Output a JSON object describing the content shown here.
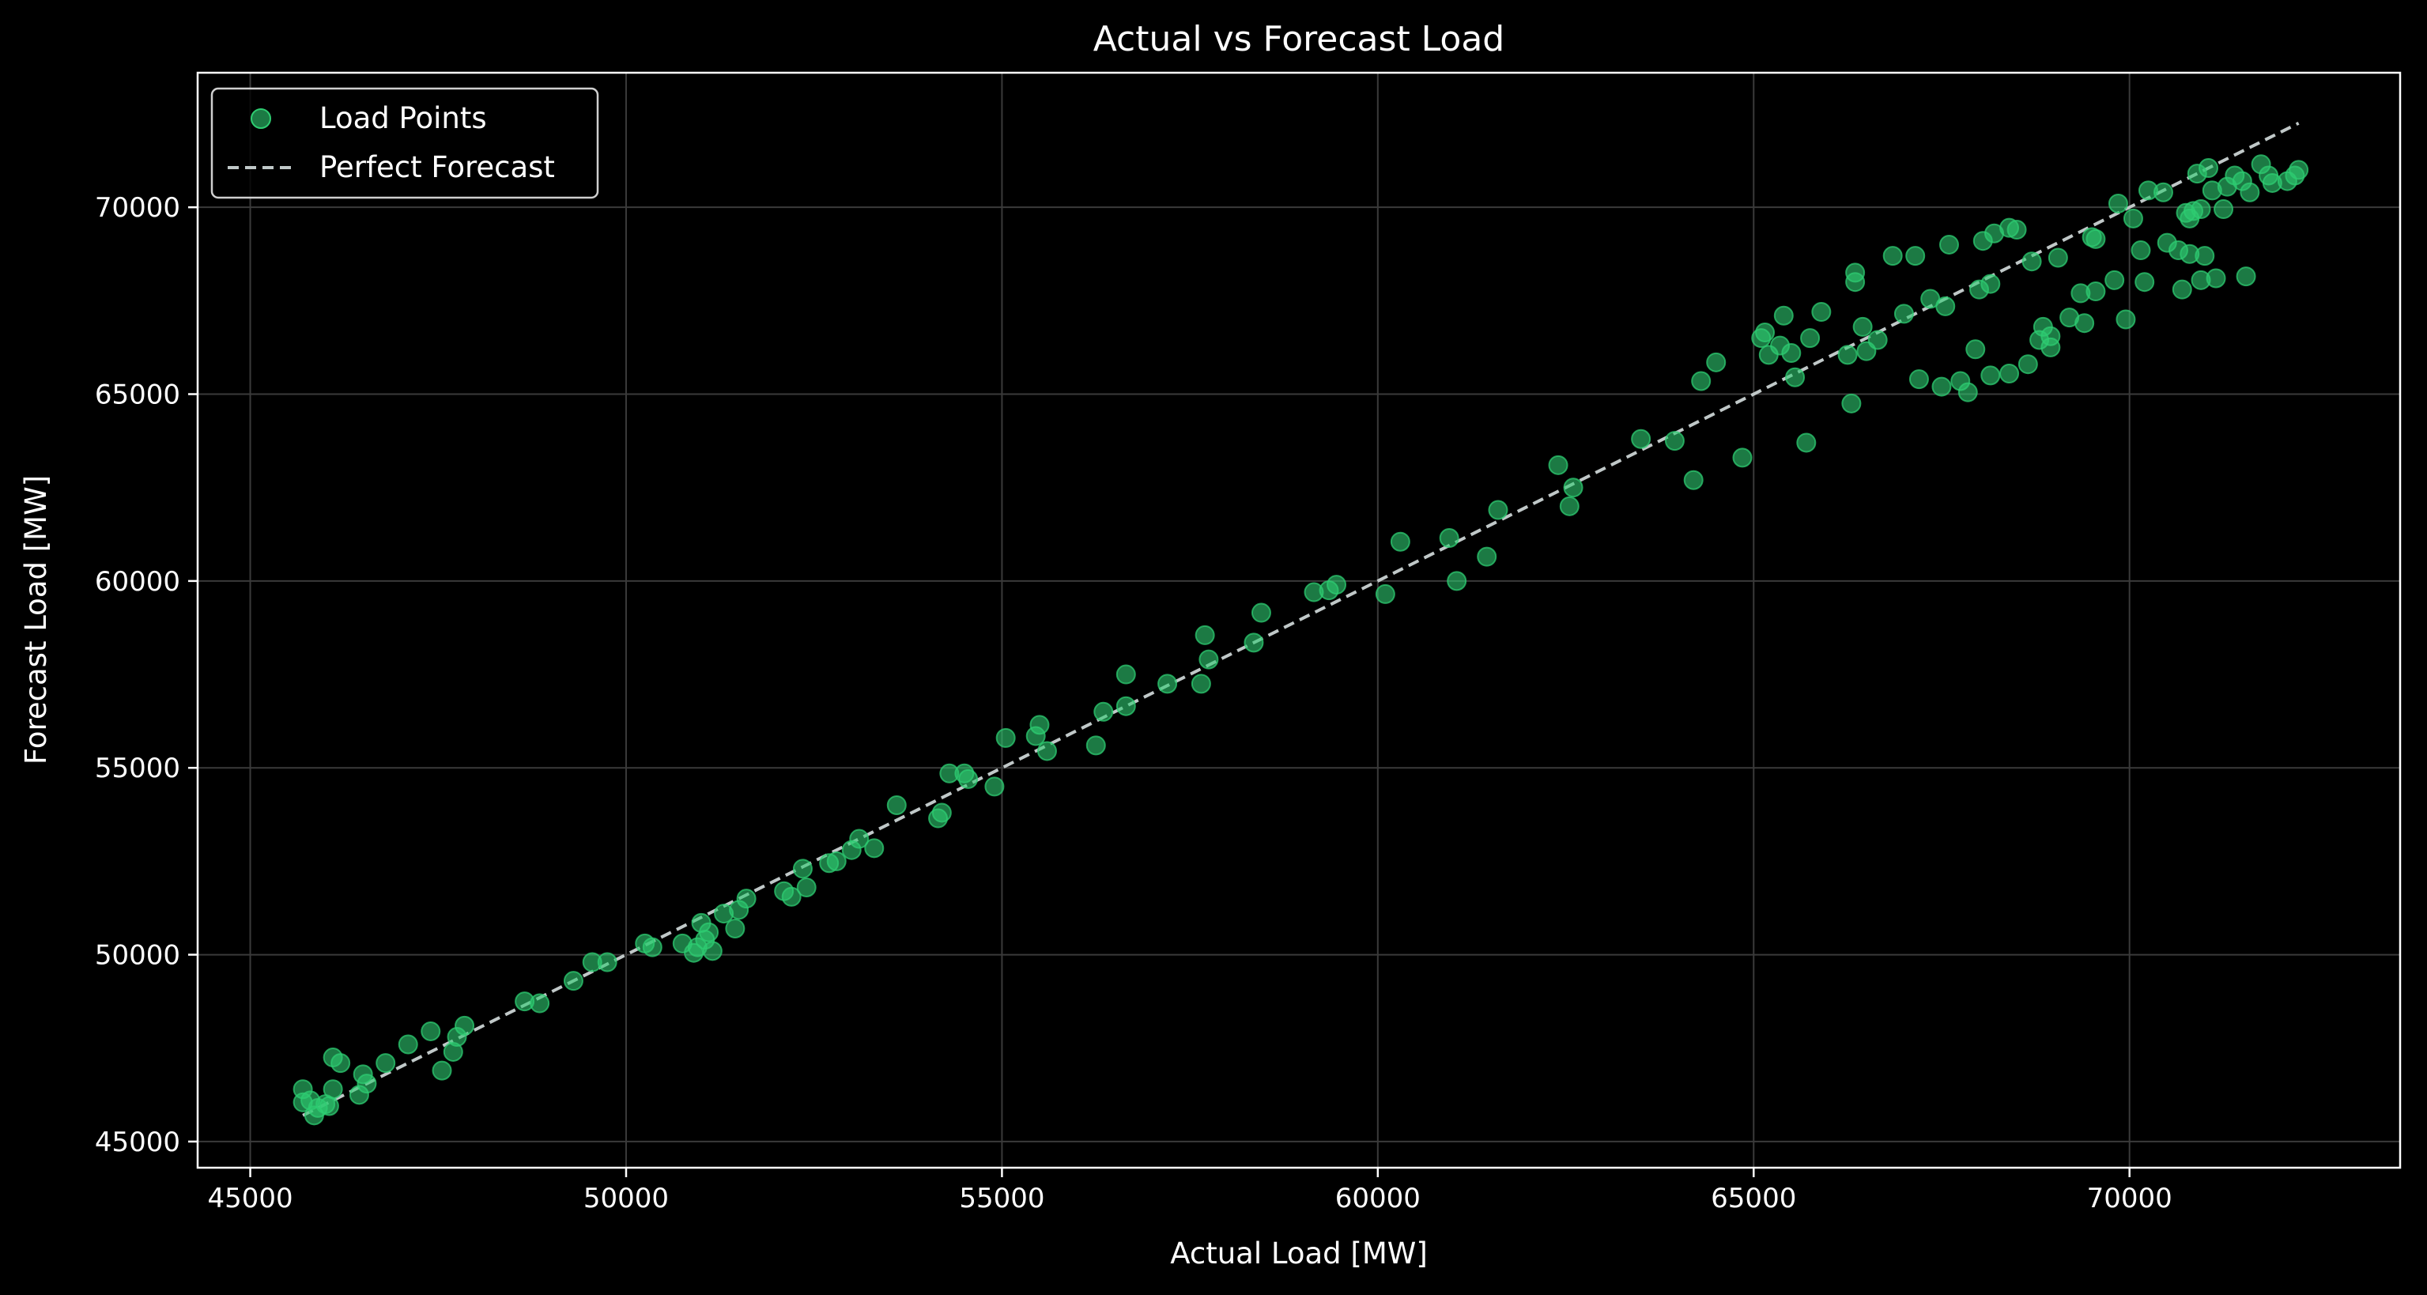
{
  "chart_data": {
    "type": "scatter",
    "title": "Actual vs Forecast Load",
    "xlabel": "Actual Load [MW]",
    "ylabel": "Forecast Load [MW]",
    "xlim": [
      44300,
      73600
    ],
    "ylim": [
      44300,
      73600
    ],
    "xticks": [
      45000,
      50000,
      55000,
      60000,
      65000,
      70000
    ],
    "yticks": [
      45000,
      50000,
      55000,
      60000,
      65000,
      70000
    ],
    "grid": true,
    "legend_position": "top-left",
    "colors": {
      "background": "#000000",
      "points": "#2ecc71",
      "reference_line": "#c0c8c8",
      "grid": "#3a3a3a",
      "text": "#ffffff"
    },
    "series": [
      {
        "name": "Load Points",
        "kind": "scatter",
        "points": [
          [
            45700,
            46050
          ],
          [
            45700,
            46400
          ],
          [
            45800,
            46100
          ],
          [
            45850,
            45700
          ],
          [
            45900,
            45900
          ],
          [
            46000,
            46000
          ],
          [
            46050,
            45950
          ],
          [
            46100,
            46400
          ],
          [
            46100,
            47250
          ],
          [
            46200,
            47100
          ],
          [
            46450,
            46250
          ],
          [
            46500,
            46800
          ],
          [
            46550,
            46550
          ],
          [
            46800,
            47100
          ],
          [
            47100,
            47600
          ],
          [
            47400,
            47950
          ],
          [
            47550,
            46900
          ],
          [
            47700,
            47400
          ],
          [
            47750,
            47800
          ],
          [
            47850,
            48100
          ],
          [
            48650,
            48750
          ],
          [
            48850,
            48700
          ],
          [
            49300,
            49300
          ],
          [
            49550,
            49800
          ],
          [
            49750,
            49800
          ],
          [
            50250,
            50300
          ],
          [
            50350,
            50200
          ],
          [
            50750,
            50300
          ],
          [
            50900,
            50050
          ],
          [
            50950,
            50200
          ],
          [
            51000,
            50850
          ],
          [
            51050,
            50400
          ],
          [
            51100,
            50600
          ],
          [
            51150,
            50100
          ],
          [
            51300,
            51100
          ],
          [
            51450,
            50700
          ],
          [
            51500,
            51200
          ],
          [
            51600,
            51500
          ],
          [
            52100,
            51700
          ],
          [
            52200,
            51550
          ],
          [
            52350,
            52300
          ],
          [
            52400,
            51800
          ],
          [
            52700,
            52450
          ],
          [
            52800,
            52500
          ],
          [
            53000,
            52800
          ],
          [
            53100,
            53100
          ],
          [
            53300,
            52850
          ],
          [
            53600,
            54000
          ],
          [
            54150,
            53650
          ],
          [
            54200,
            53800
          ],
          [
            54300,
            54850
          ],
          [
            54500,
            54850
          ],
          [
            54550,
            54700
          ],
          [
            54900,
            54500
          ],
          [
            55050,
            55800
          ],
          [
            55450,
            55850
          ],
          [
            55500,
            56150
          ],
          [
            55600,
            55450
          ],
          [
            56250,
            55600
          ],
          [
            56350,
            56500
          ],
          [
            56650,
            56650
          ],
          [
            56650,
            57500
          ],
          [
            57200,
            57250
          ],
          [
            57650,
            57250
          ],
          [
            57700,
            58550
          ],
          [
            57750,
            57900
          ],
          [
            58350,
            58350
          ],
          [
            58450,
            59150
          ],
          [
            59150,
            59700
          ],
          [
            59350,
            59750
          ],
          [
            59450,
            59900
          ],
          [
            60100,
            59650
          ],
          [
            60300,
            61050
          ],
          [
            60950,
            61150
          ],
          [
            61050,
            60000
          ],
          [
            61450,
            60650
          ],
          [
            61600,
            61900
          ],
          [
            62400,
            63100
          ],
          [
            62550,
            62000
          ],
          [
            62600,
            62500
          ],
          [
            63500,
            63800
          ],
          [
            63950,
            63750
          ],
          [
            64200,
            62700
          ],
          [
            64300,
            65350
          ],
          [
            64500,
            65850
          ],
          [
            64850,
            63300
          ],
          [
            65100,
            66500
          ],
          [
            65150,
            66650
          ],
          [
            65200,
            66050
          ],
          [
            65350,
            66300
          ],
          [
            65400,
            67100
          ],
          [
            65500,
            66100
          ],
          [
            65550,
            65450
          ],
          [
            65700,
            63700
          ],
          [
            65750,
            66500
          ],
          [
            65900,
            67200
          ],
          [
            66250,
            66050
          ],
          [
            66300,
            64750
          ],
          [
            66350,
            68000
          ],
          [
            66350,
            68250
          ],
          [
            66450,
            66800
          ],
          [
            66500,
            66150
          ],
          [
            66650,
            66450
          ],
          [
            66850,
            68700
          ],
          [
            67000,
            67150
          ],
          [
            67150,
            68700
          ],
          [
            67200,
            65400
          ],
          [
            67350,
            67550
          ],
          [
            67500,
            65200
          ],
          [
            67550,
            67350
          ],
          [
            67600,
            69000
          ],
          [
            67750,
            65350
          ],
          [
            67850,
            65050
          ],
          [
            67950,
            66200
          ],
          [
            68000,
            67800
          ],
          [
            68050,
            69100
          ],
          [
            68150,
            67950
          ],
          [
            68150,
            65500
          ],
          [
            68200,
            69300
          ],
          [
            68400,
            65550
          ],
          [
            68400,
            69450
          ],
          [
            68500,
            69400
          ],
          [
            68650,
            65800
          ],
          [
            68700,
            68550
          ],
          [
            68800,
            66450
          ],
          [
            68850,
            66800
          ],
          [
            68950,
            66550
          ],
          [
            68950,
            66250
          ],
          [
            69050,
            68650
          ],
          [
            69200,
            67050
          ],
          [
            69350,
            67700
          ],
          [
            69400,
            66900
          ],
          [
            69500,
            69200
          ],
          [
            69550,
            67750
          ],
          [
            69550,
            69150
          ],
          [
            69800,
            68050
          ],
          [
            69850,
            70100
          ],
          [
            69950,
            67000
          ],
          [
            70050,
            69700
          ],
          [
            70150,
            68850
          ],
          [
            70200,
            68000
          ],
          [
            70250,
            70450
          ],
          [
            70450,
            70400
          ],
          [
            70500,
            69050
          ],
          [
            70650,
            68850
          ],
          [
            70700,
            67800
          ],
          [
            70750,
            69850
          ],
          [
            70800,
            68750
          ],
          [
            70800,
            69700
          ],
          [
            70850,
            69900
          ],
          [
            70900,
            70900
          ],
          [
            70950,
            68050
          ],
          [
            70950,
            69950
          ],
          [
            71000,
            68700
          ],
          [
            71050,
            71050
          ],
          [
            71100,
            70450
          ],
          [
            71150,
            68100
          ],
          [
            71250,
            69950
          ],
          [
            71300,
            70550
          ],
          [
            71400,
            70850
          ],
          [
            71500,
            70700
          ],
          [
            71550,
            68150
          ],
          [
            71600,
            70400
          ],
          [
            71750,
            71150
          ],
          [
            71850,
            70850
          ],
          [
            71900,
            70650
          ],
          [
            72100,
            70700
          ],
          [
            72200,
            70850
          ],
          [
            72250,
            71000
          ]
        ]
      },
      {
        "name": "Perfect Forecast",
        "kind": "line",
        "style": "dashed",
        "points": [
          [
            45700,
            45700
          ],
          [
            72250,
            72250
          ]
        ]
      }
    ]
  }
}
